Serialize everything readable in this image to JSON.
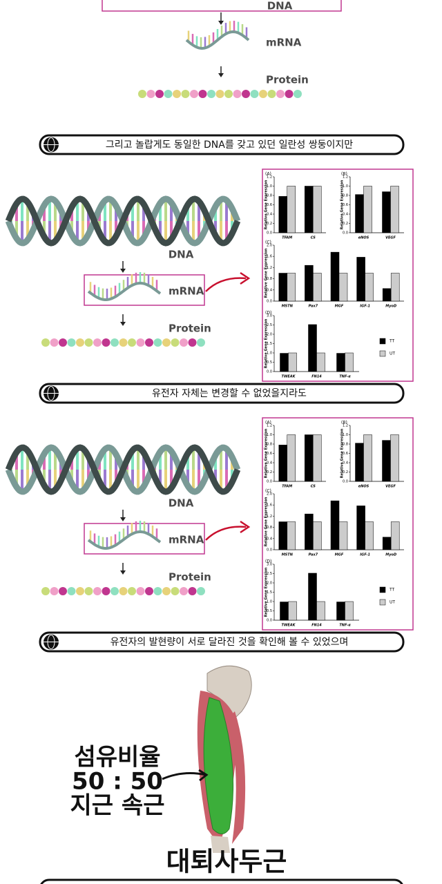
{
  "top": {
    "labels": [
      "DNA",
      "mRNA",
      "Protein"
    ]
  },
  "captions": [
    "그리고 놀랍게도 동일한 DNA를 갖고 있던 일란성 쌍둥이지만",
    "유전자 자체는 변경할 수 없었을지라도",
    "유전자의 발현량이 서로 달라진 것을 확인해 볼 수 있었으며"
  ],
  "diagrams": [
    {
      "labels": [
        "DNA",
        "mRNA",
        "Protein"
      ]
    },
    {
      "labels": [
        "DNA",
        "mRNA",
        "Protein"
      ]
    }
  ],
  "figures": [
    {
      "panels": [
        {
          "letter": "(A)",
          "y_label": "Relative Gene Expression",
          "ylim": [
            0,
            1.2
          ],
          "yticks": [
            {
              "value": 0,
              "label": "0.0"
            },
            {
              "value": 0.2,
              "label": "0.2"
            },
            {
              "value": 0.4,
              "label": "0.4"
            },
            {
              "value": 0.6,
              "label": "0.6"
            },
            {
              "value": 0.8,
              "label": "0.8"
            },
            {
              "value": 1,
              "label": "1.0"
            },
            {
              "value": 1.2,
              "label": "1.2"
            }
          ],
          "categories": [
            "TFAM",
            "CS"
          ],
          "series": [
            {
              "name": "TT",
              "color": "#000000",
              "values": [
                0.78,
                1.0
              ]
            },
            {
              "name": "UT",
              "color": "#cccccc",
              "values": [
                1.0,
                1.0
              ]
            }
          ]
        },
        {
          "letter": "(B)",
          "y_label": "Relative Gene Expression",
          "ylim": [
            0,
            1.2
          ],
          "yticks": [
            {
              "value": 0,
              "label": "0.0"
            },
            {
              "value": 0.2,
              "label": "0.2"
            },
            {
              "value": 0.4,
              "label": "0.4"
            },
            {
              "value": 0.6,
              "label": "0.6"
            },
            {
              "value": 0.8,
              "label": "0.8"
            },
            {
              "value": 1,
              "label": "1.0"
            },
            {
              "value": 1.2,
              "label": "1.2"
            }
          ],
          "categories": [
            "eNOS",
            "VEGF"
          ],
          "series": [
            {
              "name": "TT",
              "color": "#000000",
              "values": [
                0.82,
                0.88
              ]
            },
            {
              "name": "UT",
              "color": "#cccccc",
              "values": [
                1.0,
                1.0
              ]
            }
          ]
        },
        {
          "letter": "(C)",
          "y_label": "Relative Gene Expression",
          "ylim": [
            0,
            2
          ],
          "yticks": [
            {
              "value": 0,
              "label": "0.0"
            },
            {
              "value": 0.4,
              "label": "0.4"
            },
            {
              "value": 0.8,
              "label": "0.8"
            },
            {
              "value": 1.2,
              "label": "1.2"
            },
            {
              "value": 1.6,
              "label": "1.6"
            },
            {
              "value": 2,
              "label": "2.0"
            }
          ],
          "categories": [
            "MSTN",
            "Pax7",
            "MGF",
            "IGF-1",
            "MyoD"
          ],
          "series": [
            {
              "name": "TT",
              "color": "#000000",
              "values": [
                1.0,
                1.28,
                1.75,
                1.57,
                0.45
              ]
            },
            {
              "name": "UT",
              "color": "#cccccc",
              "values": [
                1.0,
                1.0,
                1.0,
                1.0,
                1.0
              ]
            }
          ]
        },
        {
          "letter": "(D)",
          "y_label": "Relative Gene Expression",
          "ylim": [
            0,
            3
          ],
          "yticks": [
            {
              "value": 0,
              "label": "0.0"
            },
            {
              "value": 0.5,
              "label": "0.5"
            },
            {
              "value": 1,
              "label": "1.0"
            },
            {
              "value": 1.5,
              "label": "1.5"
            },
            {
              "value": 2,
              "label": "2.0"
            },
            {
              "value": 2.5,
              "label": "2.5"
            },
            {
              "value": 3,
              "label": "3.0"
            }
          ],
          "categories": [
            "TWEAK",
            "FN14",
            "TNF-α"
          ],
          "series": [
            {
              "name": "TT",
              "color": "#000000",
              "values": [
                0.98,
                2.52,
                0.98
              ]
            },
            {
              "name": "UT",
              "color": "#cccccc",
              "values": [
                1.0,
                1.0,
                1.0
              ]
            }
          ],
          "legend": true
        }
      ]
    },
    {
      "panels": [
        {
          "letter": "(A)",
          "y_label": "Relative Gene Expression",
          "ylim": [
            0,
            1.2
          ],
          "yticks": [
            {
              "value": 0,
              "label": "0.0"
            },
            {
              "value": 0.2,
              "label": "0.2"
            },
            {
              "value": 0.4,
              "label": "0.4"
            },
            {
              "value": 0.6,
              "label": "0.6"
            },
            {
              "value": 0.8,
              "label": "0.8"
            },
            {
              "value": 1,
              "label": "1.0"
            },
            {
              "value": 1.2,
              "label": "1.2"
            }
          ],
          "categories": [
            "TFAM",
            "CS"
          ],
          "series": [
            {
              "name": "TT",
              "color": "#000000",
              "values": [
                0.78,
                1.0
              ]
            },
            {
              "name": "UT",
              "color": "#cccccc",
              "values": [
                1.0,
                1.0
              ]
            }
          ]
        },
        {
          "letter": "(B)",
          "y_label": "Relative Gene Expression",
          "ylim": [
            0,
            1.2
          ],
          "yticks": [
            {
              "value": 0,
              "label": "0.0"
            },
            {
              "value": 0.2,
              "label": "0.2"
            },
            {
              "value": 0.4,
              "label": "0.4"
            },
            {
              "value": 0.6,
              "label": "0.6"
            },
            {
              "value": 0.8,
              "label": "0.8"
            },
            {
              "value": 1,
              "label": "1.0"
            },
            {
              "value": 1.2,
              "label": "1.2"
            }
          ],
          "categories": [
            "eNOS",
            "VEGF"
          ],
          "series": [
            {
              "name": "TT",
              "color": "#000000",
              "values": [
                0.82,
                0.88
              ]
            },
            {
              "name": "UT",
              "color": "#cccccc",
              "values": [
                1.0,
                1.0
              ]
            }
          ]
        },
        {
          "letter": "(C)",
          "y_label": "Relative Gene Expression",
          "ylim": [
            0,
            2
          ],
          "yticks": [
            {
              "value": 0,
              "label": "0.0"
            },
            {
              "value": 0.4,
              "label": "0.4"
            },
            {
              "value": 0.8,
              "label": "0.8"
            },
            {
              "value": 1.2,
              "label": "1.2"
            },
            {
              "value": 1.6,
              "label": "1.6"
            },
            {
              "value": 2,
              "label": "2.0"
            }
          ],
          "categories": [
            "MSTN",
            "Pax7",
            "MGF",
            "IGF-1",
            "MyoD"
          ],
          "series": [
            {
              "name": "TT",
              "color": "#000000",
              "values": [
                1.0,
                1.28,
                1.75,
                1.57,
                0.45
              ]
            },
            {
              "name": "UT",
              "color": "#cccccc",
              "values": [
                1.0,
                1.0,
                1.0,
                1.0,
                1.0
              ]
            }
          ]
        },
        {
          "letter": "(D)",
          "y_label": "Relative Gene Expression",
          "ylim": [
            0,
            3
          ],
          "yticks": [
            {
              "value": 0,
              "label": "0.0"
            },
            {
              "value": 0.5,
              "label": "0.5"
            },
            {
              "value": 1,
              "label": "1.0"
            },
            {
              "value": 1.5,
              "label": "1.5"
            },
            {
              "value": 2,
              "label": "2.0"
            },
            {
              "value": 2.5,
              "label": "2.5"
            },
            {
              "value": 3,
              "label": "3.0"
            }
          ],
          "categories": [
            "TWEAK",
            "FN14",
            "TNF-α"
          ],
          "series": [
            {
              "name": "TT",
              "color": "#000000",
              "values": [
                0.98,
                2.52,
                0.98
              ]
            },
            {
              "name": "UT",
              "color": "#cccccc",
              "values": [
                1.0,
                1.0,
                1.0
              ]
            }
          ],
          "legend": true
        }
      ]
    }
  ],
  "muscle": {
    "label_lines": [
      "섬유비율",
      "50 : 50",
      "지근 속근"
    ],
    "name": "대퇴사두근"
  }
}
